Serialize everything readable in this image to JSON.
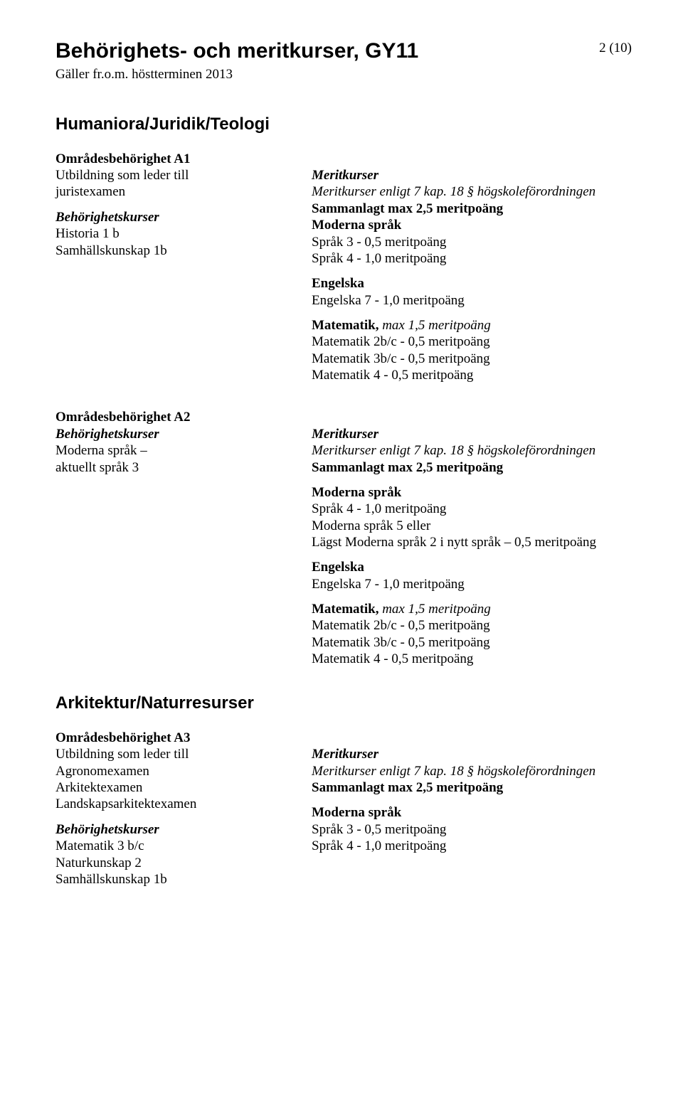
{
  "page_number": "2 (10)",
  "doc_title": "Behörighets- och meritkurser, GY11",
  "doc_subtitle": "Gäller fr.o.m. höstterminen 2013",
  "section1": {
    "title": "Humaniora/Juridik/Teologi",
    "a1": {
      "area_title": "Områdesbehörighet A1",
      "leads_to_label": "Utbildning som leder till",
      "leads_to_value": "juristexamen",
      "beh_label": "Behörighetskurser",
      "beh1": "Historia 1 b",
      "beh2": "Samhällskunskap 1b",
      "merit_label": "Meritkurser",
      "merit_ref_prefix": "Meritkurser enligt 7 kap. 18 § högskoleförordningen",
      "merit_total": "Sammanlagt max 2,5 meritpoäng",
      "moderna_label": "Moderna språk",
      "moderna1": "Språk 3 - 0,5 meritpoäng",
      "moderna2": "Språk 4 - 1,0 meritpoäng",
      "eng_label": "Engelska",
      "eng1": "Engelska 7 - 1,0 meritpoäng",
      "mat_label_prefix": "Matematik,",
      "mat_label_suffix": " max 1,5 meritpoäng",
      "mat1": "Matematik 2b/c - 0,5 meritpoäng",
      "mat2": "Matematik 3b/c - 0,5 meritpoäng",
      "mat3": "Matematik 4 - 0,5 meritpoäng"
    },
    "a2": {
      "area_title": "Områdesbehörighet A2",
      "beh_label": "Behörighetskurser",
      "beh1": "Moderna språk –",
      "beh2": "aktuellt språk 3",
      "merit_label": "Meritkurser",
      "merit_ref_prefix": "Meritkurser enligt 7 kap. 18 § högskoleförordningen",
      "merit_total": "Sammanlagt max 2,5 meritpoäng",
      "moderna_label": "Moderna språk",
      "moderna1": "Språk 4 - 1,0 meritpoäng",
      "moderna2": "Moderna språk 5 eller",
      "moderna3": "Lägst Moderna språk 2 i nytt språk – 0,5 meritpoäng",
      "eng_label": "Engelska",
      "eng1": "Engelska 7 - 1,0 meritpoäng",
      "mat_label_prefix": "Matematik,",
      "mat_label_suffix": " max 1,5 meritpoäng",
      "mat1": "Matematik 2b/c - 0,5 meritpoäng",
      "mat2": "Matematik 3b/c - 0,5 meritpoäng",
      "mat3": "Matematik 4 - 0,5 meritpoäng"
    }
  },
  "section2": {
    "title": "Arkitektur/Naturresurser",
    "a3": {
      "area_title": "Områdesbehörighet A3",
      "leads_to_label": "Utbildning som leder till",
      "leads_to_1": "Agronomexamen",
      "leads_to_2": "Arkitektexamen",
      "leads_to_3": "Landskapsarkitektexamen",
      "beh_label": "Behörighetskurser",
      "beh1": "Matematik 3 b/c",
      "beh2": "Naturkunskap 2",
      "beh3": "Samhällskunskap 1b",
      "merit_label": "Meritkurser",
      "merit_ref_prefix": "Meritkurser enligt 7 kap. 18 § högskoleförordningen",
      "merit_total": "Sammanlagt max 2,5 meritpoäng",
      "moderna_label": "Moderna språk",
      "moderna1": "Språk 3 - 0,5 meritpoäng",
      "moderna2": "Språk 4 - 1,0 meritpoäng"
    }
  }
}
